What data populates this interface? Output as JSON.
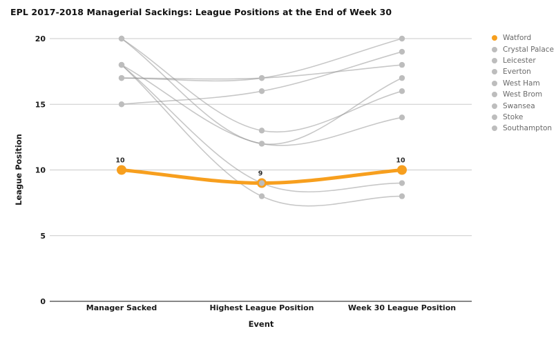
{
  "chart_data": {
    "type": "line",
    "title": "EPL 2017-2018 Managerial Sackings: League Positions at the End of Week 30",
    "xlabel": "Event",
    "ylabel": "League Position",
    "categories": [
      "Manager Sacked",
      "Highest League Position",
      "Week 30 League Position"
    ],
    "ylim": [
      0,
      20
    ],
    "yticks": [
      20,
      15,
      10,
      5,
      0
    ],
    "grid": true,
    "legend_position": "right",
    "highlight_color": "#F79F1E",
    "muted_dot_color": "#BDBDBD",
    "muted_line_color": "#C7C7C7",
    "series": [
      {
        "name": "Watford",
        "values": [
          10,
          9,
          10
        ],
        "color": "#F79F1E",
        "highlighted": true,
        "show_labels": true
      },
      {
        "name": "Crystal Palace",
        "values": [
          20,
          12,
          17
        ],
        "color": "#BDBDBD",
        "highlighted": false,
        "show_labels": false
      },
      {
        "name": "Leicester",
        "values": [
          18,
          8,
          8
        ],
        "color": "#BDBDBD",
        "highlighted": false,
        "show_labels": false
      },
      {
        "name": "Everton",
        "values": [
          18,
          9,
          9
        ],
        "color": "#BDBDBD",
        "highlighted": false,
        "show_labels": false
      },
      {
        "name": "West Ham",
        "values": [
          18,
          12,
          14
        ],
        "color": "#BDBDBD",
        "highlighted": false,
        "show_labels": false
      },
      {
        "name": "West Brom",
        "values": [
          17,
          17,
          20
        ],
        "color": "#BDBDBD",
        "highlighted": false,
        "show_labels": false
      },
      {
        "name": "Swansea",
        "values": [
          20,
          13,
          16
        ],
        "color": "#BDBDBD",
        "highlighted": false,
        "show_labels": false
      },
      {
        "name": "Stoke",
        "values": [
          15,
          16,
          19
        ],
        "color": "#BDBDBD",
        "highlighted": false,
        "show_labels": false
      },
      {
        "name": "Southampton",
        "values": [
          17,
          17,
          18
        ],
        "color": "#BDBDBD",
        "highlighted": false,
        "show_labels": false
      }
    ]
  }
}
